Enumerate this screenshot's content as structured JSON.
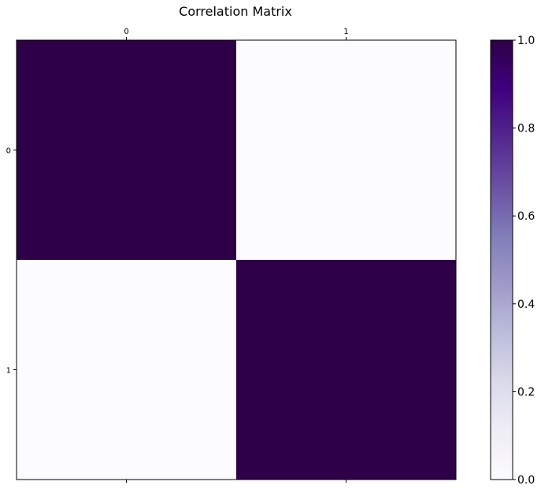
{
  "chart_data": {
    "type": "heatmap",
    "title": "Correlation Matrix",
    "x_labels": [
      "0",
      "1"
    ],
    "y_labels": [
      "0",
      "1"
    ],
    "matrix": [
      [
        1.0,
        0.0
      ],
      [
        0.0,
        1.0
      ]
    ],
    "colormap": "Purples",
    "colorbar": {
      "vmin": 0.0,
      "vmax": 1.0,
      "ticks": [
        "0.0",
        "0.2",
        "0.4",
        "0.6",
        "0.8",
        "1.0"
      ],
      "colors": [
        "#fcfbfd",
        "#efedf5",
        "#dadaeb",
        "#bcbddc",
        "#9e9ac8",
        "#807dba",
        "#6a51a3",
        "#54278f",
        "#3f007d",
        "#2e0048"
      ]
    },
    "grid": false,
    "x_ticks_position": "top-and-bottom"
  }
}
